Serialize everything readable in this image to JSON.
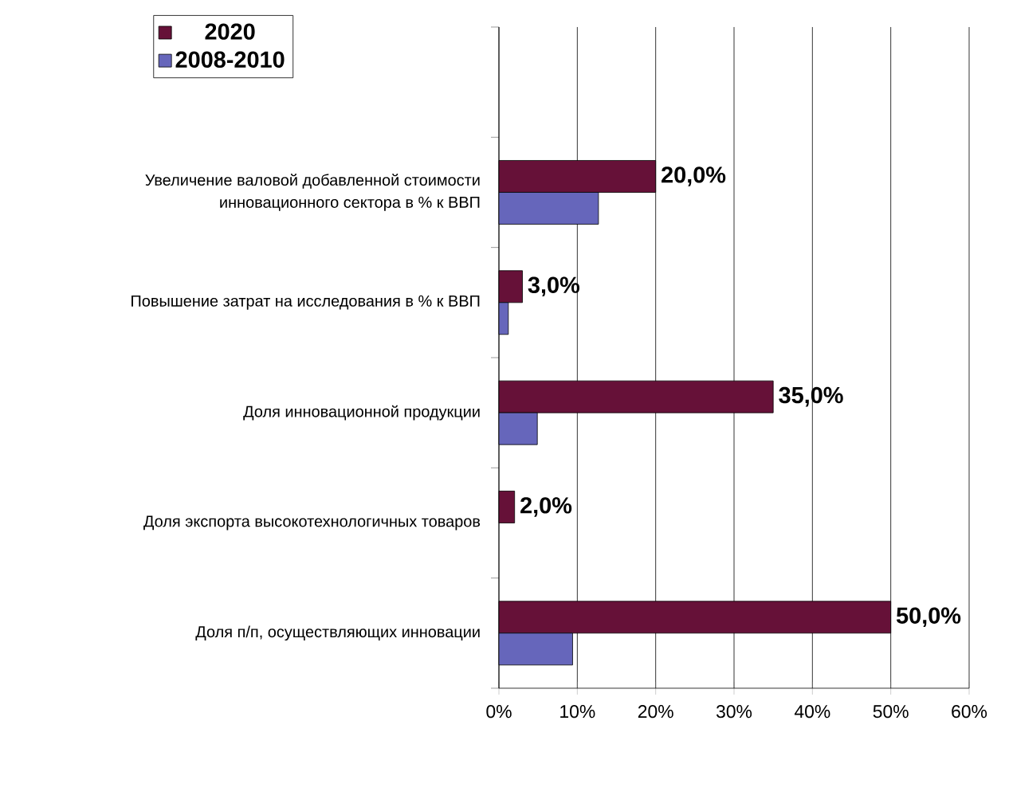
{
  "chart_data": {
    "type": "bar",
    "orientation": "horizontal",
    "categories": [
      null,
      "Увеличение валовой добавленной стоимости инновационного сектора в % к ВВП",
      "Повышение затрат на исследования в % к ВВП",
      "Доля инновационной продукции",
      "Доля экспорта высокотехнологичных товаров",
      "Доля п/п, осуществляющих инновации"
    ],
    "series": [
      {
        "name": "2020",
        "color": "#661138",
        "values": [
          null,
          20,
          3,
          35,
          2,
          50
        ],
        "value_labels": [
          null,
          "20,0%",
          "3,0%",
          "35,0%",
          "2,0%",
          "50,0%"
        ]
      },
      {
        "name": "2008-2010",
        "color": "#6666bb",
        "values": [
          null,
          12.7,
          1.2,
          4.9,
          null,
          9.4
        ]
      }
    ],
    "xlim": [
      0,
      60
    ],
    "xticks": [
      {
        "value": 0,
        "label": "0%"
      },
      {
        "value": 10,
        "label": "10%"
      },
      {
        "value": 20,
        "label": "20%"
      },
      {
        "value": 30,
        "label": "30%"
      },
      {
        "value": 40,
        "label": "40%"
      },
      {
        "value": 50,
        "label": "50%"
      },
      {
        "value": 60,
        "label": "60%"
      }
    ],
    "grid": "x",
    "legend": "top left"
  }
}
